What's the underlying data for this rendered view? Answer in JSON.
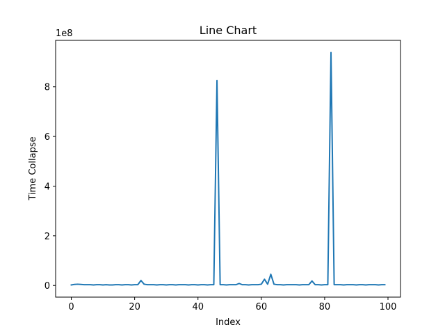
{
  "chart_data": {
    "type": "line",
    "title": "Line Chart",
    "xlabel": "Index",
    "ylabel": "Time Collapse",
    "y_offset_label": "1e8",
    "xlim": [
      -4.95,
      103.95
    ],
    "ylim": [
      -0.47,
      9.87
    ],
    "x_ticks": [
      0,
      20,
      40,
      60,
      80,
      100
    ],
    "y_ticks": [
      0,
      2,
      4,
      6,
      8
    ],
    "grid": false,
    "line_color": "#1f77b4",
    "x": [
      0,
      1,
      2,
      3,
      4,
      5,
      6,
      7,
      8,
      9,
      10,
      11,
      12,
      13,
      14,
      15,
      16,
      17,
      18,
      19,
      20,
      21,
      22,
      23,
      24,
      25,
      26,
      27,
      28,
      29,
      30,
      31,
      32,
      33,
      34,
      35,
      36,
      37,
      38,
      39,
      40,
      41,
      42,
      43,
      44,
      45,
      46,
      47,
      48,
      49,
      50,
      51,
      52,
      53,
      54,
      55,
      56,
      57,
      58,
      59,
      60,
      61,
      62,
      63,
      64,
      65,
      66,
      67,
      68,
      69,
      70,
      71,
      72,
      73,
      74,
      75,
      76,
      77,
      78,
      79,
      80,
      81,
      82,
      83,
      84,
      85,
      86,
      87,
      88,
      89,
      90,
      91,
      92,
      93,
      94,
      95,
      96,
      97,
      98,
      99
    ],
    "y": [
      0.02,
      0.04,
      0.05,
      0.04,
      0.03,
      0.03,
      0.03,
      0.02,
      0.03,
      0.03,
      0.02,
      0.03,
      0.02,
      0.02,
      0.03,
      0.03,
      0.02,
      0.03,
      0.03,
      0.02,
      0.03,
      0.03,
      0.2,
      0.05,
      0.03,
      0.03,
      0.03,
      0.02,
      0.03,
      0.03,
      0.02,
      0.03,
      0.03,
      0.02,
      0.03,
      0.03,
      0.03,
      0.02,
      0.03,
      0.03,
      0.02,
      0.03,
      0.03,
      0.02,
      0.03,
      0.03,
      8.25,
      0.03,
      0.03,
      0.02,
      0.03,
      0.03,
      0.03,
      0.08,
      0.03,
      0.03,
      0.02,
      0.03,
      0.03,
      0.03,
      0.05,
      0.25,
      0.05,
      0.45,
      0.05,
      0.03,
      0.03,
      0.02,
      0.03,
      0.03,
      0.03,
      0.03,
      0.02,
      0.03,
      0.03,
      0.03,
      0.18,
      0.03,
      0.03,
      0.02,
      0.03,
      0.03,
      9.38,
      0.03,
      0.03,
      0.03,
      0.02,
      0.03,
      0.03,
      0.03,
      0.02,
      0.03,
      0.03,
      0.02,
      0.03,
      0.03,
      0.03,
      0.02,
      0.03,
      0.03
    ]
  }
}
